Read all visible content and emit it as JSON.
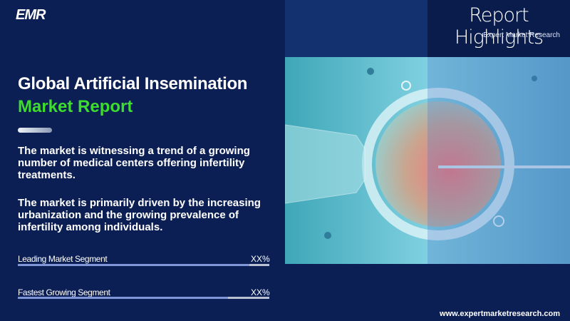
{
  "logo": "EMR",
  "header": {
    "title": "Report Highlights",
    "subtitle": "Expert Market Research"
  },
  "report": {
    "title": "Global Artificial Insemination",
    "title_highlight": "Market Report",
    "paragraphs": [
      "The market is witnessing a trend of a growing number of medical centers offering infertility treatments.",
      "The market is primarily driven by the increasing urbanization and the growing prevalence of infertility among individuals."
    ]
  },
  "segments": [
    {
      "label": "Leading Market Segment",
      "value": "XX%"
    },
    {
      "label": "Fastest Growing Segment",
      "value": "XX%"
    }
  ],
  "footer": {
    "website": "www.expertmarketresearch.com"
  }
}
